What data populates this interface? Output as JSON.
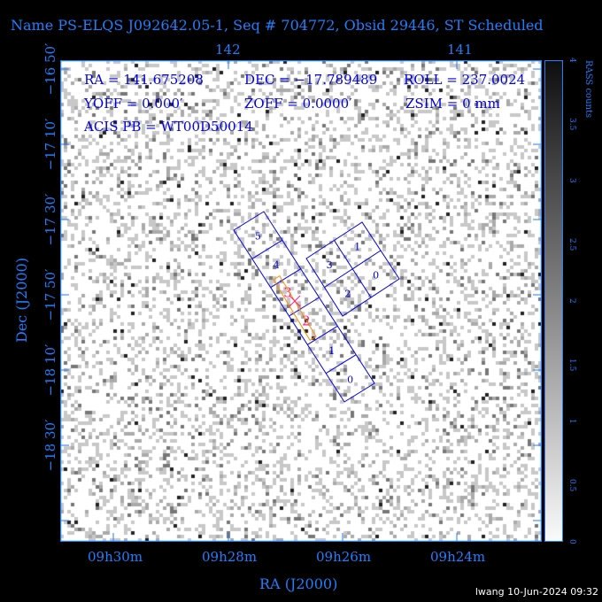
{
  "title": "Name PS-ELQS J092642.05-1, Seq # 704772, Obsid 29446, ST Scheduled",
  "info": {
    "ra": "RA = 141.675208",
    "dec": "DEC = −17.789489",
    "roll": "ROLL = 237.0024",
    "yoff": "YOFF =    0.000′",
    "zoff": "ZOFF =  0.0000′",
    "zsim": "ZSIM = 0 mm",
    "acis_pb": "ACIS PB = WT00D50014"
  },
  "chart_data": {
    "type": "heatmap",
    "xlabel": "RA (J2000)",
    "ylabel": "Dec (J2000)",
    "x_ticks_bottom": [
      "09h30m",
      "09h28m",
      "09h26m",
      "09h24m"
    ],
    "x_ticks_top": [
      "142",
      "141"
    ],
    "y_ticks": [
      "−16 50′",
      "−17 10′",
      "−17 30′",
      "−17 50′",
      "−18 10′",
      "−18 30′"
    ],
    "colorbar": {
      "label": "RASS counts",
      "range": [
        0,
        4
      ],
      "ticks": [
        "0",
        "0.5",
        "1",
        "1.5",
        "2",
        "2.5",
        "3",
        "3.5",
        "4"
      ]
    },
    "acis_s_chips": [
      "5",
      "4",
      "3",
      "2",
      "1",
      "0"
    ],
    "acis_i_chips": [
      "3",
      "1",
      "2",
      "0"
    ],
    "highlight_chips": [
      "3",
      "2"
    ],
    "colors": {
      "axes": "#1e7fff",
      "chips": "#0000e0",
      "highlight": "#ff2080",
      "aimpoint_box": "#ff8c00"
    }
  },
  "stamp": "lwang 10-Jun-2024 09:32"
}
